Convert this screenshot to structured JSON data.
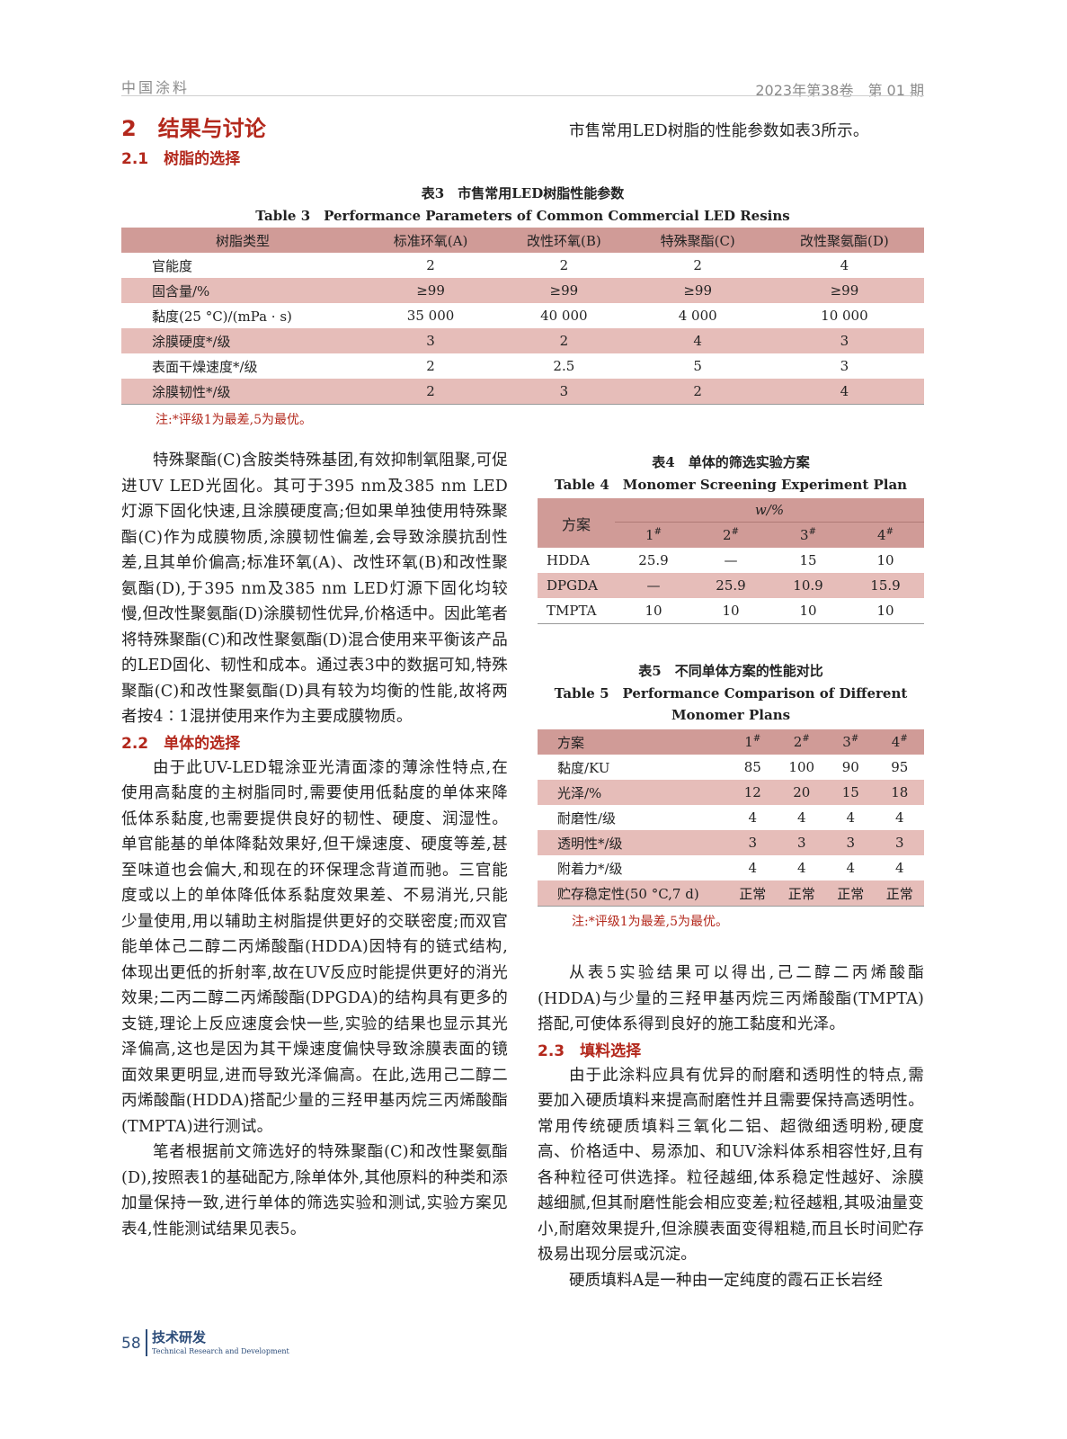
{
  "header": {
    "journal": "中国涂料",
    "issue": "2023年第38卷　第 01 期"
  },
  "section": {
    "title": "2　结果与讨论",
    "sub1": "2.1　树脂的选择",
    "sub2": "2.2　单体的选择",
    "sub3": "2.3　填料选择"
  },
  "intro": "市售常用LED树脂的性能参数如表3所示。",
  "table3": {
    "caption_cn": "表3　市售常用LED树脂性能参数",
    "caption_en": "Table 3　Performance Parameters of Common Commercial LED Resins",
    "headers": [
      "树脂类型",
      "标准环氧(A)",
      "改性环氧(B)",
      "特殊聚酯(C)",
      "改性聚氨酯(D)"
    ],
    "rows": [
      [
        "官能度",
        "2",
        "2",
        "2",
        "4"
      ],
      [
        "固含量/%",
        "≥99",
        "≥99",
        "≥99",
        "≥99"
      ],
      [
        "黏度(25 °C)/(mPa · s)",
        "35 000",
        "40 000",
        "4 000",
        "10 000"
      ],
      [
        "涂膜硬度*/级",
        "3",
        "2",
        "4",
        "3"
      ],
      [
        "表面干燥速度*/级",
        "2",
        "2.5",
        "5",
        "3"
      ],
      [
        "涂膜韧性*/级",
        "2",
        "3",
        "2",
        "4"
      ]
    ],
    "note": "注:*评级1为最差,5为最优。"
  },
  "left_paras": [
    "特殊聚酯(C)含胺类特殊基团,有效抑制氧阻聚,可促进UV LED光固化。其可于395 nm及385 nm LED灯源下固化快速,且涂膜硬度高;但如果单独使用特殊聚酯(C)作为成膜物质,涂膜韧性偏差,会导致涂膜抗刮性差,且其单价偏高;标准环氧(A)、改性环氧(B)和改性聚氨酯(D),于395 nm及385 nm LED灯源下固化均较慢,但改性聚氨酯(D)涂膜韧性优异,价格适中。因此笔者将特殊聚酯(C)和改性聚氨酯(D)混合使用来平衡该产品的LED固化、韧性和成本。通过表3中的数据可知,特殊聚酯(C)和改性聚氨酯(D)具有较为均衡的性能,故将两者按4∶1混拼使用来作为主要成膜物质。",
    "由于此UV-LED辊涂亚光清面漆的薄涂性特点,在使用高黏度的主树脂同时,需要使用低黏度的单体来降低体系黏度,也需要提供良好的韧性、硬度、润湿性。单官能基的单体降黏效果好,但干燥速度、硬度等差,甚至味道也会偏大,和现在的环保理念背道而驰。三官能度或以上的单体降低体系黏度效果差、不易消光,只能少量使用,用以辅助主树脂提供更好的交联密度;而双官能单体己二醇二丙烯酸酯(HDDA)因特有的链式结构,体现出更低的折射率,故在UV反应时能提供更好的消光效果;二丙二醇二丙烯酸酯(DPGDA)的结构具有更多的支链,理论上反应速度会快一些,实验的结果也显示其光泽偏高,这也是因为其干燥速度偏快导致涂膜表面的镜面效果更明显,进而导致光泽偏高。在此,选用己二醇二丙烯酸酯(HDDA)搭配少量的三羟甲基丙烷三丙烯酸酯(TMPTA)进行测试。",
    "笔者根据前文筛选好的特殊聚酯(C)和改性聚氨酯(D),按照表1的基础配方,除单体外,其他原料的种类和添加量保持一致,进行单体的筛选实验和测试,实验方案见表4,性能测试结果见表5。"
  ],
  "table4": {
    "caption_cn": "表4　单体的筛选实验方案",
    "caption_en": "Table 4　Monomer Screening Experiment Plan",
    "row_header": "方案",
    "group_header": "w/%",
    "cols": [
      "1",
      "2",
      "3",
      "4"
    ],
    "col_mark": "#",
    "rows": [
      [
        "HDDA",
        "25.9",
        "—",
        "15",
        "10"
      ],
      [
        "DPGDA",
        "—",
        "25.9",
        "10.9",
        "15.9"
      ],
      [
        "TMPTA",
        "10",
        "10",
        "10",
        "10"
      ]
    ]
  },
  "table5": {
    "caption_cn": "表5　不同单体方案的性能对比",
    "caption_en": "Table 5　Performance Comparison of Different Monomer Plans",
    "row_header": "方案",
    "cols": [
      "1",
      "2",
      "3",
      "4"
    ],
    "col_mark": "#",
    "rows": [
      [
        "黏度/KU",
        "85",
        "100",
        "90",
        "95"
      ],
      [
        "光泽/%",
        "12",
        "20",
        "15",
        "18"
      ],
      [
        "耐磨性/级",
        "4",
        "4",
        "4",
        "4"
      ],
      [
        "透明性*/级",
        "3",
        "3",
        "3",
        "3"
      ],
      [
        "附着力*/级",
        "4",
        "4",
        "4",
        "4"
      ],
      [
        "贮存稳定性(50 °C,7 d)",
        "正常",
        "正常",
        "正常",
        "正常"
      ]
    ],
    "note": "注:*评级1为最差,5为最优。"
  },
  "right_paras": [
    "从表5实验结果可以得出,己二醇二丙烯酸酯(HDDA)与少量的三羟甲基丙烷三丙烯酸酯(TMPTA)搭配,可使体系得到良好的施工黏度和光泽。",
    "由于此涂料应具有优异的耐磨和透明性的特点,需要加入硬质填料来提高耐磨性并且需要保持高透明性。常用传统硬质填料三氧化二铝、超微细透明粉,硬度高、价格适中、易添加、和UV涂料体系相容性好,且有各种粒径可供选择。粒径越细,体系稳定性越好、涂膜越细腻,但其耐磨性能会相应变差;粒径越粗,其吸油量变小,耐磨效果提升,但涂膜表面变得粗糙,而且长时间贮存极易出现分层或沉淀。",
    "硬质填料A是一种由一定纯度的霞石正长岩经"
  ],
  "footer": {
    "page": "58",
    "column_cn": "技术研发",
    "column_en": "Technical Research and Development"
  },
  "colors": {
    "accent": "#b3281c",
    "table_header": "#d09b97",
    "table_stripe": "#e6bdb9",
    "footer": "#2d4d7a"
  }
}
